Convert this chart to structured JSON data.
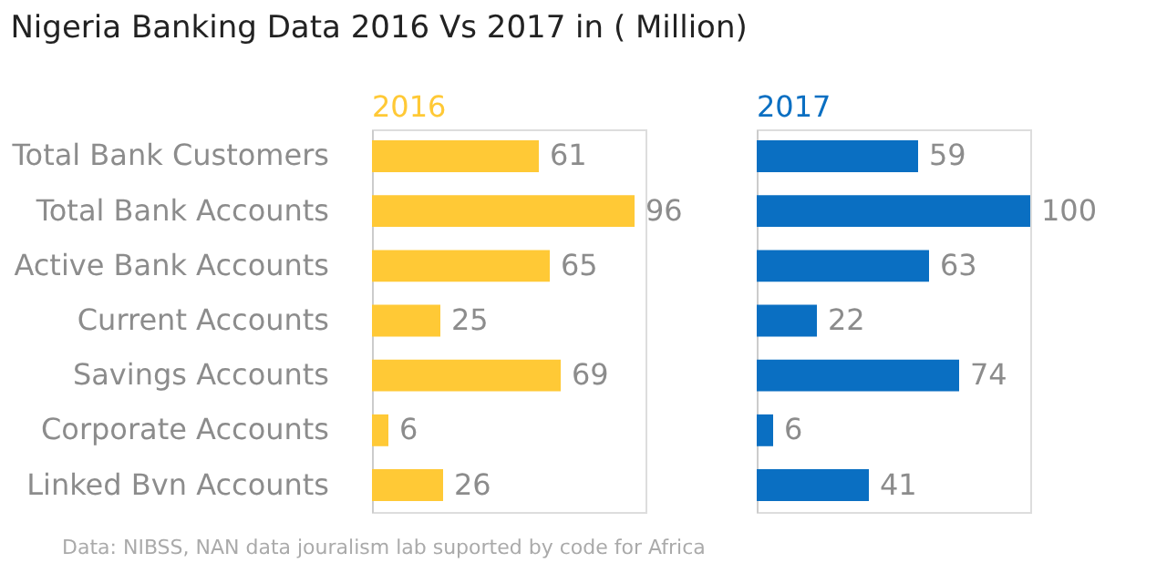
{
  "chart_data": [
    {
      "type": "bar",
      "orientation": "horizontal",
      "title": "Nigeria Banking Data 2016 Vs 2017 in ( Million)",
      "categories": [
        "Total Bank Customers",
        "Total Bank Accounts",
        "Active Bank Accounts",
        "Current Accounts",
        "Savings Accounts",
        "Corporate Accounts",
        "Linked Bvn Accounts"
      ],
      "series": [
        {
          "name": "2016",
          "color": "#ffc936",
          "values": [
            61,
            96,
            65,
            25,
            69,
            6,
            26
          ]
        }
      ],
      "data_labels": true,
      "annotations": [
        "Data: NIBSS, NAN data jouralism lab suported by code for Africa"
      ]
    },
    {
      "type": "bar",
      "orientation": "horizontal",
      "categories": [
        null,
        null,
        null,
        null,
        null,
        null,
        null
      ],
      "series": [
        {
          "name": "2017",
          "color": "#0a6fc2",
          "values": [
            59,
            100,
            63,
            22,
            74,
            6,
            41
          ]
        }
      ],
      "data_labels": true,
      "tick_labels": false
    }
  ]
}
